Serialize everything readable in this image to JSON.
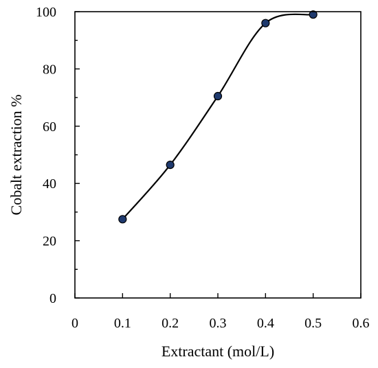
{
  "chart_data": {
    "type": "scatter",
    "title": "",
    "xlabel": "Extractant (mol/L)",
    "ylabel": "Cobalt extraction %",
    "xlim": [
      0,
      0.6
    ],
    "ylim": [
      0,
      100
    ],
    "x_ticks": [
      "0",
      "0.1",
      "0.2",
      "0.3",
      "0.4",
      "0.5",
      "0.6"
    ],
    "y_ticks": [
      "0",
      "20",
      "40",
      "60",
      "80",
      "100"
    ],
    "grid": false,
    "legend": "none",
    "marker_color": "#1f3a6e",
    "series": [
      {
        "points": [
          {
            "x": 0.1,
            "y": 27.5
          },
          {
            "x": 0.2,
            "y": 46.5
          },
          {
            "x": 0.3,
            "y": 70.5
          },
          {
            "x": 0.4,
            "y": 96
          },
          {
            "x": 0.5,
            "y": 99
          }
        ]
      }
    ]
  }
}
